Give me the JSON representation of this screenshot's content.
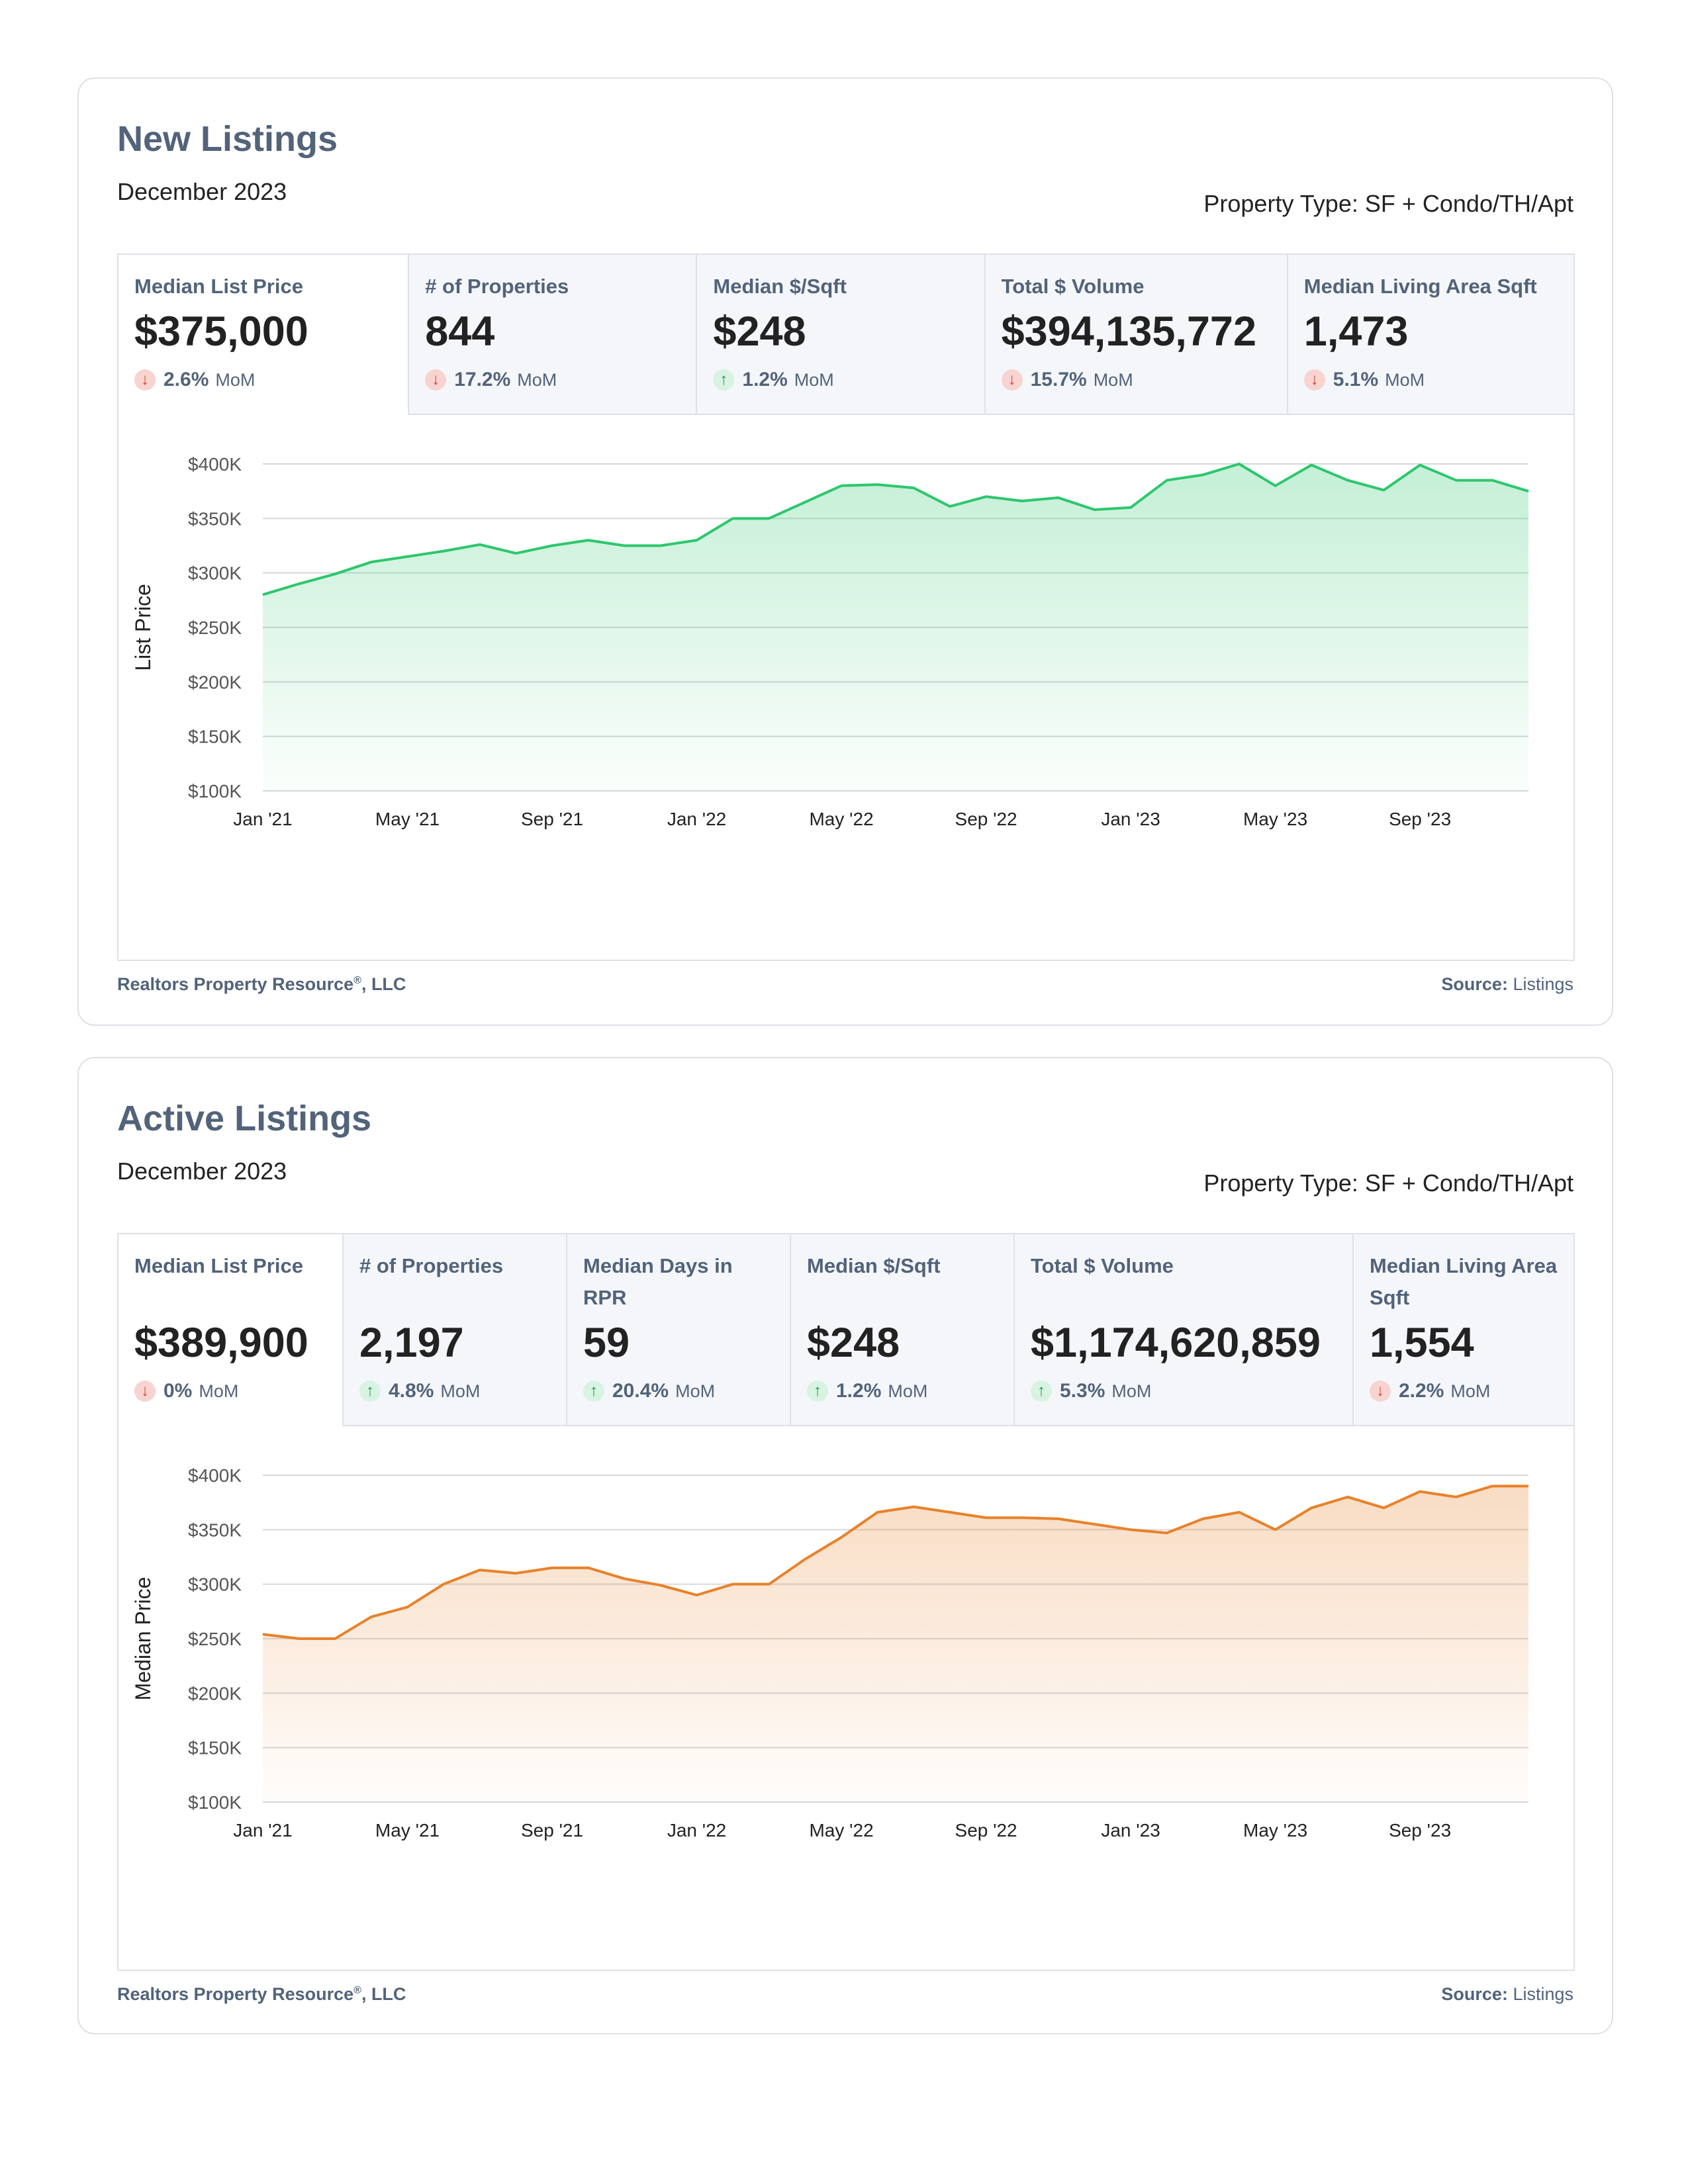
{
  "sections": [
    {
      "title": "New Listings",
      "date": "December 2023",
      "property_type": "Property Type: SF + Condo/TH/Apt",
      "metrics": [
        {
          "label": "Median List Price",
          "value": "$375,000",
          "change": "2.6%",
          "direction": "down",
          "period": "MoM"
        },
        {
          "label": "# of Properties",
          "value": "844",
          "change": "17.2%",
          "direction": "down",
          "period": "MoM"
        },
        {
          "label": "Median $/Sqft",
          "value": "$248",
          "change": "1.2%",
          "direction": "up",
          "period": "MoM"
        },
        {
          "label": "Total $ Volume",
          "value": "$394,135,772",
          "change": "15.7%",
          "direction": "down",
          "period": "MoM"
        },
        {
          "label": "Median Living Area Sqft",
          "value": "1,473",
          "change": "5.1%",
          "direction": "down",
          "period": "MoM"
        }
      ],
      "footer_left": "Realtors Property Resource",
      "footer_left_mark": "®",
      "footer_left_suffix": ", LLC",
      "source_label": "Source:",
      "source_value": "Listings",
      "accent": "#2dc76d"
    },
    {
      "title": "Active Listings",
      "date": "December 2023",
      "property_type": "Property Type: SF + Condo/TH/Apt",
      "metrics": [
        {
          "label": "Median List Price",
          "value": "$389,900",
          "change": "0%",
          "direction": "down",
          "period": "MoM"
        },
        {
          "label": "# of Properties",
          "value": "2,197",
          "change": "4.8%",
          "direction": "up",
          "period": "MoM"
        },
        {
          "label": "Median Days in RPR",
          "value": "59",
          "change": "20.4%",
          "direction": "up",
          "period": "MoM"
        },
        {
          "label": "Median $/Sqft",
          "value": "$248",
          "change": "1.2%",
          "direction": "up",
          "period": "MoM"
        },
        {
          "label": "Total $ Volume",
          "value": "$1,174,620,859",
          "change": "5.3%",
          "direction": "up",
          "period": "MoM"
        },
        {
          "label": "Median Living Area Sqft",
          "value": "1,554",
          "change": "2.2%",
          "direction": "down",
          "period": "MoM"
        }
      ],
      "footer_left": "Realtors Property Resource",
      "footer_left_mark": "®",
      "footer_left_suffix": ", LLC",
      "source_label": "Source:",
      "source_value": "Listings",
      "accent": "#e8822a"
    }
  ],
  "chart_data": [
    {
      "type": "area",
      "title": "",
      "xlabel": "",
      "ylabel": "List Price",
      "ylim": [
        100000,
        400000
      ],
      "yticks": [
        "$100K",
        "$150K",
        "$200K",
        "$250K",
        "$300K",
        "$350K",
        "$400K"
      ],
      "xticks": [
        "Jan '21",
        "May '21",
        "Sep '21",
        "Jan '22",
        "May '22",
        "Sep '22",
        "Jan '23",
        "May '23",
        "Sep '23"
      ],
      "x": [
        "2021-01",
        "2021-02",
        "2021-03",
        "2021-04",
        "2021-05",
        "2021-06",
        "2021-07",
        "2021-08",
        "2021-09",
        "2021-10",
        "2021-11",
        "2021-12",
        "2022-01",
        "2022-02",
        "2022-03",
        "2022-04",
        "2022-05",
        "2022-06",
        "2022-07",
        "2022-08",
        "2022-09",
        "2022-10",
        "2022-11",
        "2022-12",
        "2023-01",
        "2023-02",
        "2023-03",
        "2023-04",
        "2023-05",
        "2023-06",
        "2023-07",
        "2023-08",
        "2023-09",
        "2023-10",
        "2023-11",
        "2023-12"
      ],
      "series": [
        {
          "values": [
            280000,
            290000,
            299000,
            310000,
            315000,
            320000,
            326000,
            318000,
            325000,
            330000,
            325000,
            325000,
            330000,
            350000,
            350000,
            365000,
            380000,
            381000,
            378000,
            361000,
            370000,
            366000,
            369000,
            358000,
            360000,
            385000,
            390000,
            400000,
            380000,
            399000,
            385000,
            376000,
            399000,
            385000,
            385000,
            375000
          ],
          "color": "#2dc76d"
        }
      ],
      "grid": true
    },
    {
      "type": "area",
      "title": "",
      "xlabel": "",
      "ylabel": "Median Price",
      "ylim": [
        100000,
        400000
      ],
      "yticks": [
        "$100K",
        "$150K",
        "$200K",
        "$250K",
        "$300K",
        "$350K",
        "$400K"
      ],
      "xticks": [
        "Jan '21",
        "May '21",
        "Sep '21",
        "Jan '22",
        "May '22",
        "Sep '22",
        "Jan '23",
        "May '23",
        "Sep '23"
      ],
      "x": [
        "2021-01",
        "2021-02",
        "2021-03",
        "2021-04",
        "2021-05",
        "2021-06",
        "2021-07",
        "2021-08",
        "2021-09",
        "2021-10",
        "2021-11",
        "2021-12",
        "2022-01",
        "2022-02",
        "2022-03",
        "2022-04",
        "2022-05",
        "2022-06",
        "2022-07",
        "2022-08",
        "2022-09",
        "2022-10",
        "2022-11",
        "2022-12",
        "2023-01",
        "2023-02",
        "2023-03",
        "2023-04",
        "2023-05",
        "2023-06",
        "2023-07",
        "2023-08",
        "2023-09",
        "2023-10",
        "2023-11",
        "2023-12"
      ],
      "series": [
        {
          "values": [
            254000,
            250000,
            250000,
            270000,
            279000,
            300000,
            313000,
            310000,
            315000,
            315000,
            305000,
            299000,
            290000,
            300000,
            300000,
            323000,
            343000,
            366000,
            371000,
            366000,
            361000,
            361000,
            360000,
            355000,
            350000,
            347000,
            360000,
            366000,
            350000,
            370000,
            380000,
            370000,
            385000,
            380000,
            390000,
            390000
          ],
          "color": "#e8822a"
        }
      ],
      "grid": true
    }
  ]
}
